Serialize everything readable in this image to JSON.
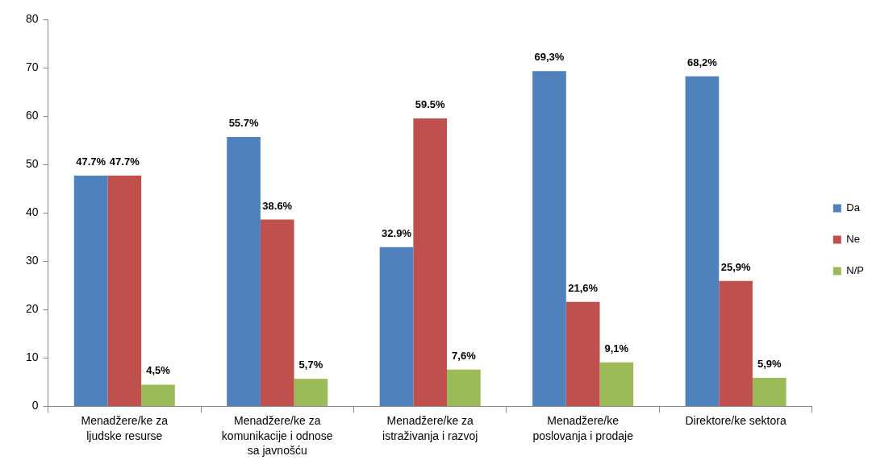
{
  "chart_data": {
    "type": "bar",
    "categories": [
      "Menadžere/ke za ljudske resurse",
      "Menadžere/ke za komunikacije i odnose sa javnošću",
      "Menadžere/ke za istraživanja i razvoj",
      "Menadžere/ke poslovanja i prodaje",
      "Direktore/ke sektora"
    ],
    "series": [
      {
        "name": "Da",
        "color": "#4f81bd",
        "values": [
          47.7,
          55.7,
          32.9,
          69.3,
          68.2
        ],
        "value_labels": [
          "47.7%",
          "55.7%",
          "32.9%",
          "69,3%",
          "68,2%"
        ]
      },
      {
        "name": "Ne",
        "color": "#c0504d",
        "values": [
          47.7,
          38.6,
          59.5,
          21.6,
          25.9
        ],
        "value_labels": [
          "47.7%",
          "38.6%",
          "59.5%",
          "21,6%",
          "25,9%"
        ]
      },
      {
        "name": "N/P",
        "color": "#9bbb59",
        "values": [
          4.5,
          5.7,
          7.6,
          9.1,
          5.9
        ],
        "value_labels": [
          "4,5%",
          "5,7%",
          "7,6%",
          "9,1%",
          "5,9%"
        ]
      }
    ],
    "ylim": [
      0,
      80
    ],
    "yticks": [
      0,
      10,
      20,
      30,
      40,
      50,
      60,
      70,
      80
    ],
    "grid": false,
    "legend": "right"
  }
}
